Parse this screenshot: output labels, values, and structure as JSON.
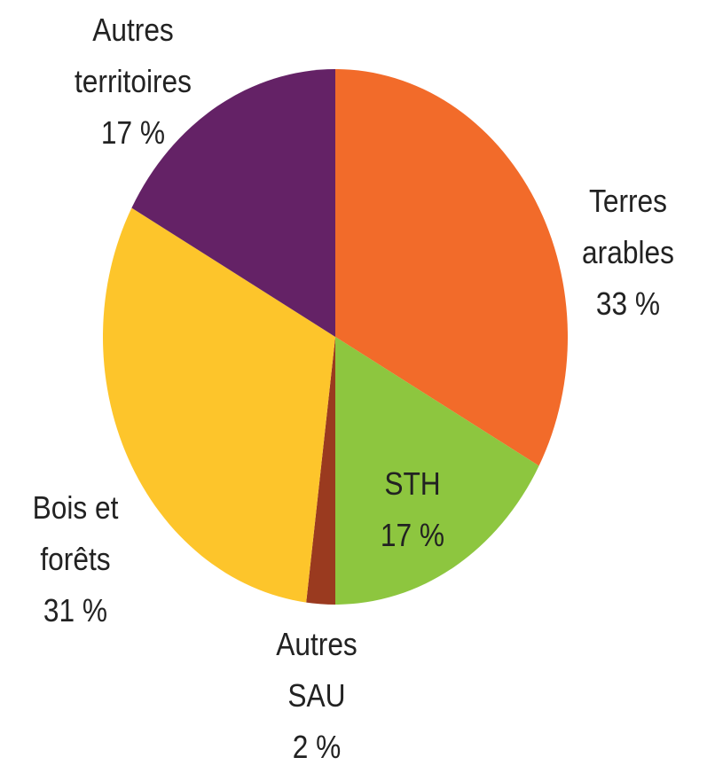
{
  "chart_data": {
    "type": "pie",
    "categories": [
      "Terres arables",
      "STH",
      "Autres SAU",
      "Bois et forêts",
      "Autres territoires"
    ],
    "values": [
      33,
      17,
      2,
      31,
      17
    ],
    "value_labels": [
      "33 %",
      "17 %",
      "2 %",
      "31 %",
      "17 %"
    ],
    "colors": [
      "#f26b2a",
      "#8dc63f",
      "#9a3a1f",
      "#fdc52b",
      "#642266"
    ]
  }
}
